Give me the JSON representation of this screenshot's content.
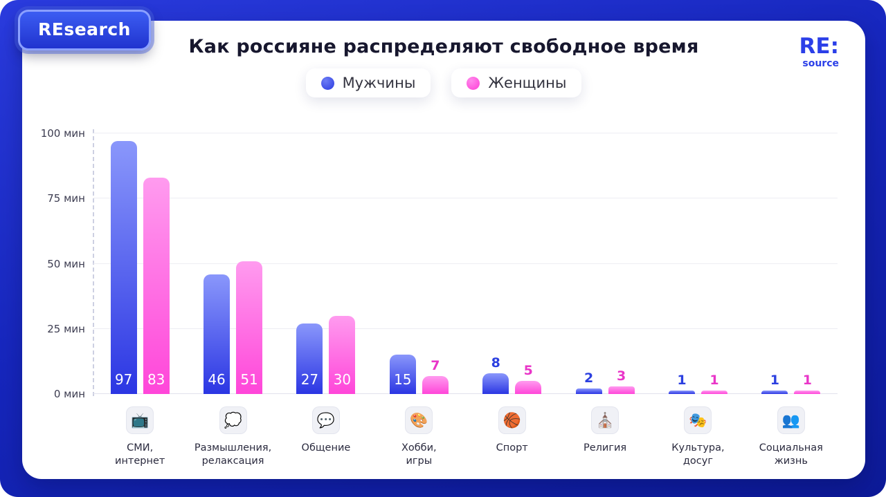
{
  "brand": {
    "badge_label": "REsearch",
    "logo_main": "RE:",
    "logo_sub": "source"
  },
  "chart_data": {
    "type": "bar",
    "title": "Как россияне распределяют свободное время",
    "unit": "мин",
    "ylim": [
      0,
      100
    ],
    "grid": true,
    "legend_position": "top",
    "inside_label_threshold": 15,
    "categories": [
      "СМИ,\nинтернет",
      "Размышления,\nрелаксация",
      "Общение",
      "Хобби,\nигры",
      "Спорт",
      "Религия",
      "Культура,\nдосуг",
      "Социальная\nжизнь"
    ],
    "icons": [
      {
        "name": "tv-icon",
        "glyph": "📺"
      },
      {
        "name": "thought-balloon-icon",
        "glyph": "💭"
      },
      {
        "name": "speech-balloon-icon",
        "glyph": "💬"
      },
      {
        "name": "palette-icon",
        "glyph": "🎨"
      },
      {
        "name": "basketball-icon",
        "glyph": "🏀"
      },
      {
        "name": "church-icon",
        "glyph": "⛪"
      },
      {
        "name": "performing-arts-icon",
        "glyph": "🎭"
      },
      {
        "name": "people-icon",
        "glyph": "👥"
      }
    ],
    "yticks": [
      {
        "label": "0 мин",
        "value": 0
      },
      {
        "label": "25 мин",
        "value": 25
      },
      {
        "label": "50 мин",
        "value": 50
      },
      {
        "label": "75 мин",
        "value": 75
      },
      {
        "label": "100 мин",
        "value": 100
      }
    ],
    "series": [
      {
        "name": "Мужчины",
        "color_top": "#8a97fb",
        "color_bottom": "#2b36e3",
        "label_color": "#2b3fe0",
        "values": [
          97,
          46,
          27,
          15,
          8,
          2,
          1,
          1
        ]
      },
      {
        "name": "Женщины",
        "color_top": "#ff9bef",
        "color_bottom": "#ff46d9",
        "label_color": "#e935c8",
        "values": [
          83,
          51,
          30,
          7,
          5,
          3,
          1,
          1
        ]
      }
    ]
  }
}
